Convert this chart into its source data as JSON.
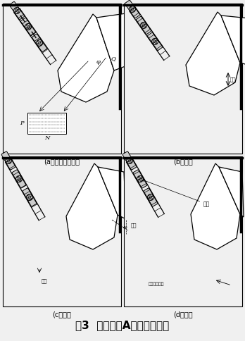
{
  "title": "图3  加料机构A四个工作位置",
  "subfig_labels": [
    "(a）快加（全开）",
    "(b）中加",
    "(c）慢加",
    "(d）全闭"
  ],
  "bg_color": "#f0f0f0",
  "white": "#ffffff",
  "black": "#000000",
  "gray1": "#888888",
  "gray2": "#bbbbbb",
  "gray3": "#dddddd",
  "dark": "#444444"
}
